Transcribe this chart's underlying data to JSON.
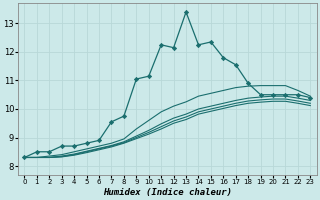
{
  "xlabel": "Humidex (Indice chaleur)",
  "background_color": "#cce9e9",
  "grid_color": "#b8d8d8",
  "line_color": "#1a6e6e",
  "x_values": [
    0,
    1,
    2,
    3,
    4,
    5,
    6,
    7,
    8,
    9,
    10,
    11,
    12,
    13,
    14,
    15,
    16,
    17,
    18,
    19,
    20,
    21,
    22,
    23
  ],
  "ylim": [
    7.7,
    13.7
  ],
  "xlim": [
    -0.5,
    23.5
  ],
  "yticks": [
    8,
    9,
    10,
    11,
    12,
    13
  ],
  "xticks": [
    0,
    1,
    2,
    3,
    4,
    5,
    6,
    7,
    8,
    9,
    10,
    11,
    12,
    13,
    14,
    15,
    16,
    17,
    18,
    19,
    20,
    21,
    22,
    23
  ],
  "series_main": [
    8.3,
    8.5,
    8.5,
    8.7,
    8.7,
    8.8,
    8.9,
    9.55,
    9.75,
    11.05,
    11.15,
    12.25,
    12.15,
    13.4,
    12.25,
    12.35,
    11.8,
    11.55,
    10.9,
    10.5,
    10.5,
    10.5,
    10.5,
    10.4
  ],
  "series_smooth": [
    [
      8.3,
      8.3,
      8.35,
      8.4,
      8.5,
      8.6,
      8.7,
      8.8,
      8.95,
      9.3,
      9.6,
      9.9,
      10.1,
      10.25,
      10.45,
      10.55,
      10.65,
      10.75,
      10.8,
      10.82,
      10.82,
      10.82,
      10.65,
      10.45
    ],
    [
      8.3,
      8.3,
      8.3,
      8.35,
      8.42,
      8.52,
      8.62,
      8.72,
      8.85,
      9.05,
      9.25,
      9.48,
      9.68,
      9.82,
      10.0,
      10.1,
      10.2,
      10.3,
      10.38,
      10.42,
      10.45,
      10.45,
      10.38,
      10.3
    ],
    [
      8.3,
      8.3,
      8.3,
      8.33,
      8.4,
      8.5,
      8.6,
      8.7,
      8.82,
      9.0,
      9.18,
      9.38,
      9.58,
      9.72,
      9.9,
      10.0,
      10.1,
      10.2,
      10.28,
      10.32,
      10.35,
      10.35,
      10.28,
      10.2
    ],
    [
      8.3,
      8.3,
      8.3,
      8.32,
      8.38,
      8.47,
      8.57,
      8.67,
      8.8,
      8.96,
      9.12,
      9.3,
      9.5,
      9.63,
      9.82,
      9.92,
      10.02,
      10.12,
      10.2,
      10.24,
      10.27,
      10.27,
      10.2,
      10.12
    ]
  ]
}
